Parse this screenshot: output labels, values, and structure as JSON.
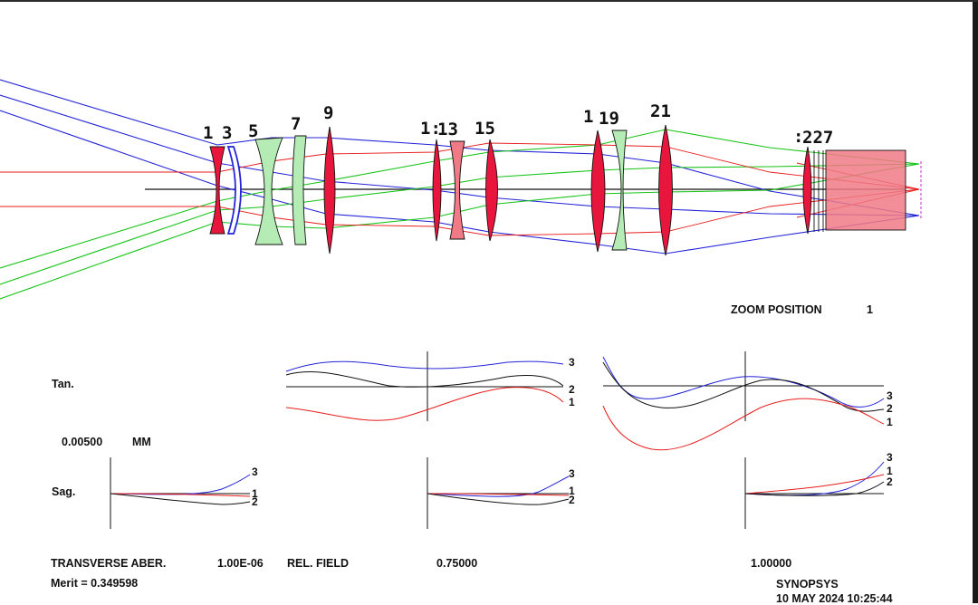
{
  "surface_labels": [
    "1",
    "3",
    "5",
    "7",
    "9",
    "1:",
    "13",
    "15",
    "1",
    "19",
    "21",
    ":",
    "227"
  ],
  "zoom": {
    "label": "ZOOM POSITION",
    "value": "1"
  },
  "aberrations": {
    "tan_label": "Tan.",
    "sag_label": "Sag.",
    "scale_value": "0.00500",
    "scale_unit": "MM",
    "curve_labels": [
      "1",
      "2",
      "3"
    ]
  },
  "footer": {
    "title": "TRANSVERSE ABER.",
    "tolerance": "1.00E-06",
    "rel_field_label": "REL. FIELD",
    "field_mid": "0.75000",
    "field_max": "1.00000",
    "merit": "Merit = 0.349598",
    "program": "SYNOPSYS",
    "date": "10 MAY 2024 10:25:44"
  },
  "colors": {
    "lens_red": "#e8163c",
    "lens_green": "#b5ecb5",
    "ray_blue": "#2424d8",
    "ray_green": "#18c418",
    "ray_red": "#e81c1c",
    "curve_black": "#111111",
    "prism_pink": "#f07a85"
  }
}
